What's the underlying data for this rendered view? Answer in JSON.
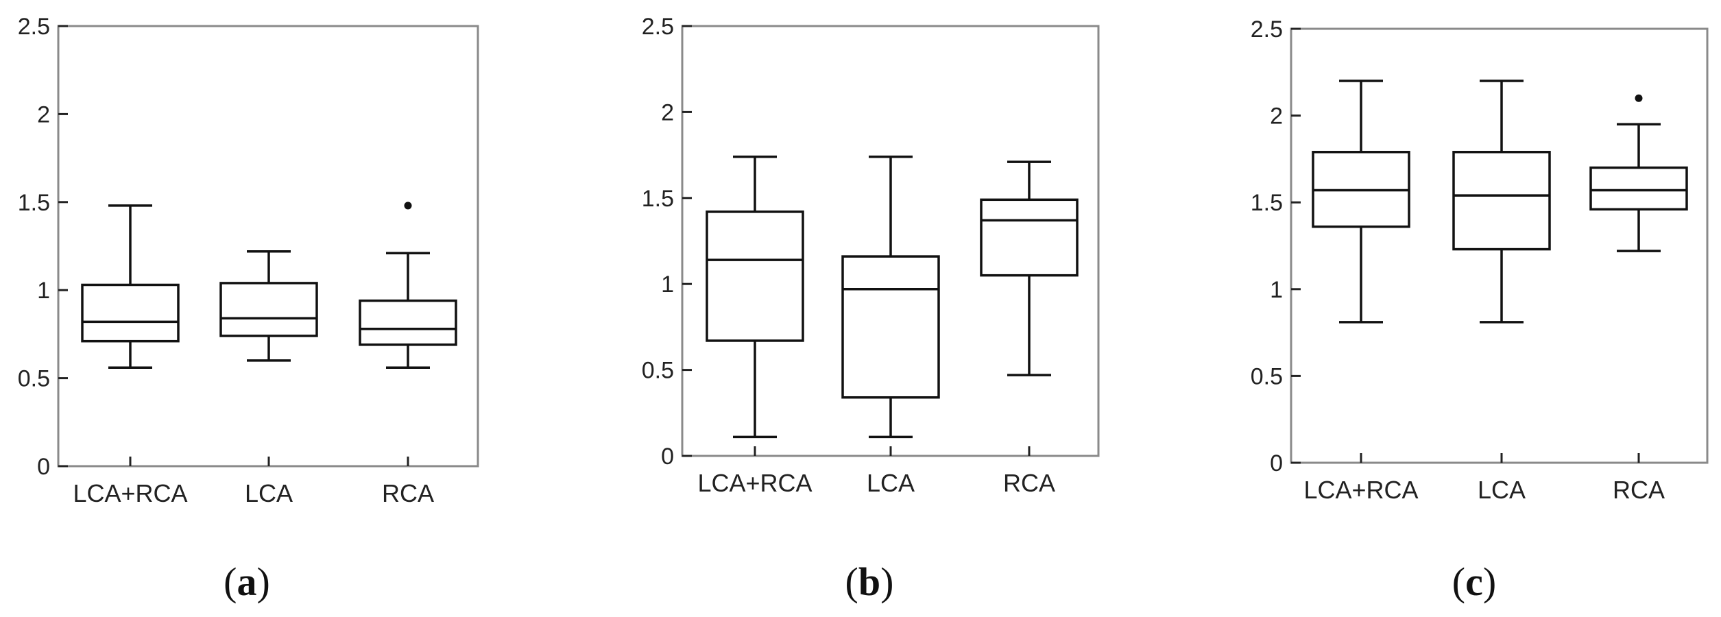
{
  "panel_labels": [
    "(a)",
    "(b)",
    "(c)"
  ],
  "panel_letters": [
    "a",
    "b",
    "c"
  ],
  "chart_data": [
    {
      "type": "box",
      "panel": "a",
      "categories": [
        "LCA+RCA",
        "LCA",
        "RCA"
      ],
      "ylim": [
        0,
        2.5
      ],
      "yticks": [
        "0",
        "0.5",
        "1",
        "1.5",
        "2",
        "2.5"
      ],
      "yticks_values": [
        0,
        0.5,
        1,
        1.5,
        2,
        2.5
      ],
      "boxes": [
        {
          "min": 0.56,
          "q1": 0.71,
          "median": 0.82,
          "q3": 1.03,
          "max": 1.48,
          "outliers": []
        },
        {
          "min": 0.6,
          "q1": 0.74,
          "median": 0.84,
          "q3": 1.04,
          "max": 1.22,
          "outliers": []
        },
        {
          "min": 0.56,
          "q1": 0.69,
          "median": 0.78,
          "q3": 0.94,
          "max": 1.21,
          "outliers": [
            1.48
          ]
        }
      ],
      "grid": false
    },
    {
      "type": "box",
      "panel": "b",
      "categories": [
        "LCA+RCA",
        "LCA",
        "RCA"
      ],
      "ylim": [
        0,
        2.5
      ],
      "yticks": [
        "0",
        "0.5",
        "1",
        "1.5",
        "2",
        "2.5"
      ],
      "yticks_values": [
        0,
        0.5,
        1,
        1.5,
        2,
        2.5
      ],
      "boxes": [
        {
          "min": 0.11,
          "q1": 0.67,
          "median": 1.14,
          "q3": 1.42,
          "max": 1.74,
          "outliers": []
        },
        {
          "min": 0.11,
          "q1": 0.34,
          "median": 0.97,
          "q3": 1.16,
          "max": 1.74,
          "outliers": []
        },
        {
          "min": 0.47,
          "q1": 1.05,
          "median": 1.37,
          "q3": 1.49,
          "max": 1.71,
          "outliers": []
        }
      ],
      "grid": false
    },
    {
      "type": "box",
      "panel": "c",
      "categories": [
        "LCA+RCA",
        "LCA",
        "RCA"
      ],
      "ylim": [
        0,
        2.5
      ],
      "yticks": [
        "0",
        "0.5",
        "1",
        "1.5",
        "2",
        "2.5"
      ],
      "yticks_values": [
        0,
        0.5,
        1,
        1.5,
        2,
        2.5
      ],
      "boxes": [
        {
          "min": 0.81,
          "q1": 1.36,
          "median": 1.57,
          "q3": 1.79,
          "max": 2.2,
          "outliers": []
        },
        {
          "min": 0.81,
          "q1": 1.23,
          "median": 1.54,
          "q3": 1.79,
          "max": 2.2,
          "outliers": []
        },
        {
          "min": 1.22,
          "q1": 1.46,
          "median": 1.57,
          "q3": 1.7,
          "max": 1.95,
          "outliers": [
            2.1
          ]
        }
      ],
      "grid": false
    }
  ]
}
